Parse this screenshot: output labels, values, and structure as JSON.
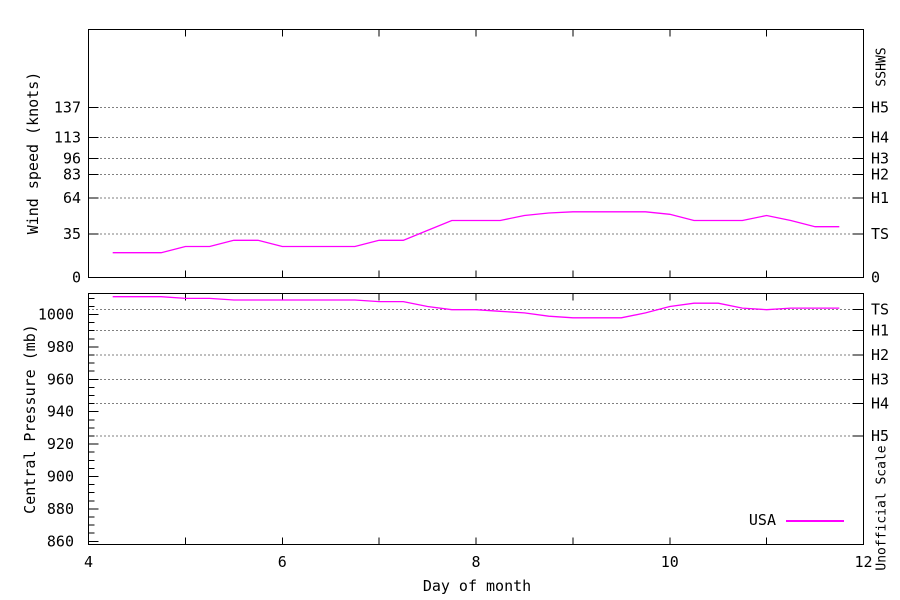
{
  "figure": {
    "background": "#ffffff",
    "line_color": "#ff00ff",
    "axis_color": "#000000",
    "xlabel": "Day of month"
  },
  "chart_data": [
    {
      "type": "line",
      "panel": "wind-speed",
      "ylabel": "Wind speed (knots)",
      "y2label": "SSHWS",
      "xlim": [
        4,
        12
      ],
      "ylim": [
        0,
        200
      ],
      "grid": "dotted-horizontal-thresholds",
      "legend_position": "none",
      "x_ticks": [
        4,
        5,
        6,
        7,
        8,
        9,
        10,
        11,
        12
      ],
      "x_tick_labels": [],
      "y_ticks": [
        {
          "value": 0,
          "label": "0"
        },
        {
          "value": 35,
          "label": "35"
        },
        {
          "value": 64,
          "label": "64"
        },
        {
          "value": 83,
          "label": "83"
        },
        {
          "value": 96,
          "label": "96"
        },
        {
          "value": 113,
          "label": "113"
        },
        {
          "value": 137,
          "label": "137"
        }
      ],
      "y2_ticks": [
        {
          "value": 0,
          "label": "0"
        },
        {
          "value": 35,
          "label": "TS"
        },
        {
          "value": 64,
          "label": "H1"
        },
        {
          "value": 83,
          "label": "H2"
        },
        {
          "value": 96,
          "label": "H3"
        },
        {
          "value": 113,
          "label": "H4"
        },
        {
          "value": 137,
          "label": "H5"
        }
      ],
      "gridlines": [
        35,
        64,
        83,
        96,
        113,
        137
      ],
      "series": [
        {
          "name": "USA",
          "color": "#ff00ff",
          "x_units": "day of month",
          "y_units": "knots",
          "points": [
            [
              4.25,
              20
            ],
            [
              4.5,
              20
            ],
            [
              4.75,
              20
            ],
            [
              5,
              25
            ],
            [
              5.25,
              25
            ],
            [
              5.5,
              30
            ],
            [
              5.75,
              30
            ],
            [
              6,
              25
            ],
            [
              6.25,
              25
            ],
            [
              6.5,
              25
            ],
            [
              6.75,
              25
            ],
            [
              7,
              30
            ],
            [
              7.25,
              30
            ],
            [
              7.5,
              38
            ],
            [
              7.75,
              46
            ],
            [
              8,
              46
            ],
            [
              8.25,
              46
            ],
            [
              8.5,
              50
            ],
            [
              8.75,
              52
            ],
            [
              9,
              53
            ],
            [
              9.25,
              53
            ],
            [
              9.5,
              53
            ],
            [
              9.75,
              53
            ],
            [
              10,
              51
            ],
            [
              10.25,
              46
            ],
            [
              10.5,
              46
            ],
            [
              10.75,
              46
            ],
            [
              11,
              50
            ],
            [
              11.25,
              46
            ],
            [
              11.5,
              41
            ],
            [
              11.75,
              41
            ]
          ]
        }
      ]
    },
    {
      "type": "line",
      "panel": "central-pressure",
      "ylabel": "Central Pressure (mb)",
      "y2label": "Unofficial Scale",
      "xlim": [
        4,
        12
      ],
      "ylim": [
        858,
        1013
      ],
      "grid": "dotted-horizontal-thresholds",
      "legend_position": "inside-bottom-right",
      "legend": {
        "label": "USA"
      },
      "x_ticks": [
        4,
        5,
        6,
        7,
        8,
        9,
        10,
        11,
        12
      ],
      "x_tick_labels": [
        {
          "value": 4,
          "label": "4"
        },
        {
          "value": 6,
          "label": "6"
        },
        {
          "value": 8,
          "label": "8"
        },
        {
          "value": 10,
          "label": "10"
        },
        {
          "value": 12,
          "label": "12"
        }
      ],
      "y_ticks": [
        {
          "value": 860,
          "label": "860"
        },
        {
          "value": 880,
          "label": "880"
        },
        {
          "value": 900,
          "label": "900"
        },
        {
          "value": 920,
          "label": "920"
        },
        {
          "value": 940,
          "label": "940"
        },
        {
          "value": 960,
          "label": "960"
        },
        {
          "value": 980,
          "label": "980"
        },
        {
          "value": 1000,
          "label": "1000"
        }
      ],
      "y_minor_step": 5,
      "y2_ticks": [
        {
          "value": 1003,
          "label": "TS"
        },
        {
          "value": 990,
          "label": "H1"
        },
        {
          "value": 975,
          "label": "H2"
        },
        {
          "value": 960,
          "label": "H3"
        },
        {
          "value": 945,
          "label": "H4"
        },
        {
          "value": 925,
          "label": "H5"
        }
      ],
      "gridlines": [
        1003,
        990,
        975,
        960,
        945,
        925
      ],
      "series": [
        {
          "name": "USA",
          "color": "#ff00ff",
          "x_units": "day of month",
          "y_units": "mb",
          "points": [
            [
              4.25,
              1011
            ],
            [
              4.5,
              1011
            ],
            [
              4.75,
              1011
            ],
            [
              5,
              1010
            ],
            [
              5.25,
              1010
            ],
            [
              5.5,
              1009
            ],
            [
              5.75,
              1009
            ],
            [
              6,
              1009
            ],
            [
              6.25,
              1009
            ],
            [
              6.5,
              1009
            ],
            [
              6.75,
              1009
            ],
            [
              7,
              1008
            ],
            [
              7.25,
              1008
            ],
            [
              7.5,
              1005
            ],
            [
              7.75,
              1003
            ],
            [
              8,
              1003
            ],
            [
              8.25,
              1002
            ],
            [
              8.5,
              1001
            ],
            [
              8.75,
              999
            ],
            [
              9,
              998
            ],
            [
              9.25,
              998
            ],
            [
              9.5,
              998
            ],
            [
              9.75,
              1001
            ],
            [
              10,
              1005
            ],
            [
              10.25,
              1007
            ],
            [
              10.5,
              1007
            ],
            [
              10.75,
              1004
            ],
            [
              11,
              1003
            ],
            [
              11.25,
              1004
            ],
            [
              11.5,
              1004
            ],
            [
              11.75,
              1004
            ]
          ]
        }
      ]
    }
  ]
}
